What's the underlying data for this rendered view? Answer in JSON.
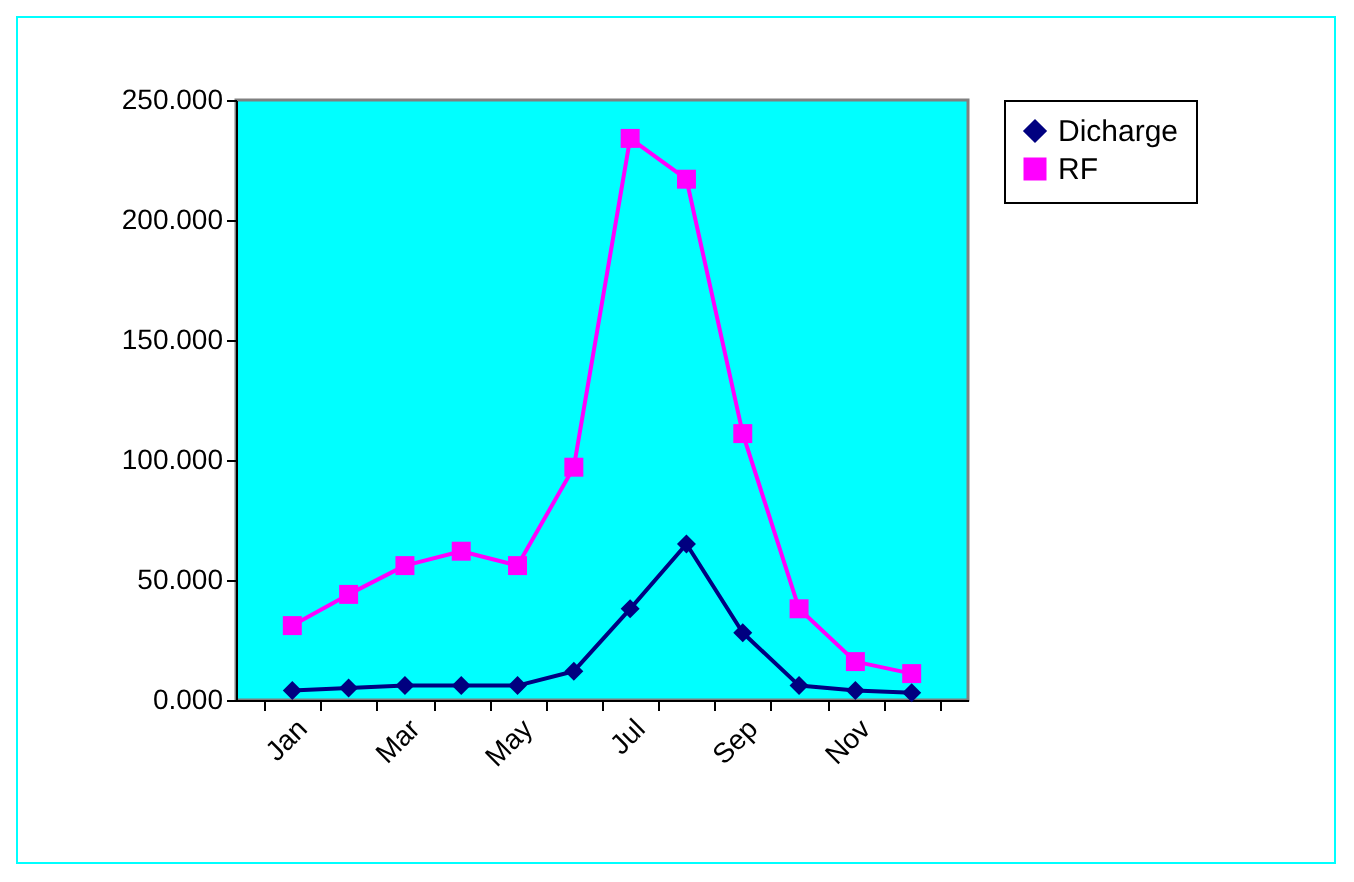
{
  "chart_data": {
    "type": "line",
    "categories": [
      "Jan",
      null,
      "Mar",
      null,
      "May",
      null,
      "Jul",
      null,
      "Sep",
      null,
      "Nov",
      null
    ],
    "series": [
      {
        "name": "Dicharge",
        "color": "#000080",
        "marker": "diamond",
        "values": [
          4,
          5,
          6,
          6,
          6,
          12,
          38,
          65,
          28,
          6,
          4,
          3
        ]
      },
      {
        "name": "RF",
        "color": "#ff00ff",
        "marker": "square",
        "values": [
          31,
          44,
          56,
          62,
          56,
          97,
          234,
          217,
          111,
          38,
          16,
          11
        ]
      }
    ],
    "ylim": [
      0,
      250
    ],
    "yticks": [
      {
        "value": 0,
        "label": "0.000"
      },
      {
        "value": 50,
        "label": "50.000"
      },
      {
        "value": 100,
        "label": "100.000"
      },
      {
        "value": 150,
        "label": "150.000"
      },
      {
        "value": 200,
        "label": "200.000"
      },
      {
        "value": 250,
        "label": "250.000"
      }
    ],
    "grid": false,
    "legend": "right",
    "line_style": "solid"
  }
}
